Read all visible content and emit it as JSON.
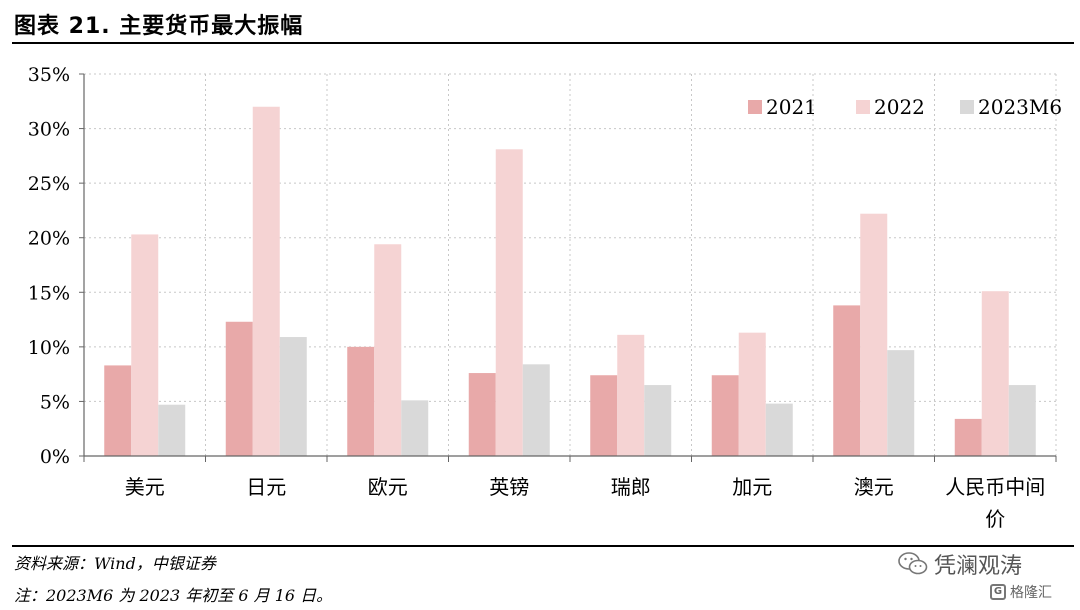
{
  "header": {
    "title": "图表 21. 主要货币最大振幅"
  },
  "chart_data": {
    "type": "bar",
    "categories": [
      "美元",
      "日元",
      "欧元",
      "英镑",
      "瑞郎",
      "加元",
      "澳元",
      "人民币中间价"
    ],
    "category_lines": [
      [
        "美元"
      ],
      [
        "日元"
      ],
      [
        "欧元"
      ],
      [
        "英镑"
      ],
      [
        "瑞郎"
      ],
      [
        "加元"
      ],
      [
        "澳元"
      ],
      [
        "人民币中间",
        "价"
      ]
    ],
    "series": [
      {
        "name": "2021",
        "color": "#e8a9a9",
        "values": [
          8.3,
          12.3,
          10.0,
          7.6,
          7.4,
          7.4,
          13.8,
          3.4
        ]
      },
      {
        "name": "2022",
        "color": "#f5d3d3",
        "values": [
          20.3,
          32.0,
          19.4,
          28.1,
          11.1,
          11.3,
          22.2,
          15.1
        ]
      },
      {
        "name": "2023M6",
        "color": "#d9d9d9",
        "values": [
          4.7,
          10.9,
          5.1,
          8.4,
          6.5,
          4.8,
          9.7,
          6.5
        ]
      }
    ],
    "yticks": [
      "0%",
      "5%",
      "10%",
      "15%",
      "20%",
      "25%",
      "30%",
      "35%"
    ],
    "ylim": [
      0,
      35
    ],
    "grid": true,
    "legend_position": "top-right"
  },
  "footer": {
    "source": "资料来源：Wind，中银证券",
    "note": "注：2023M6 为 2023 年初至 6 月 16 日。"
  },
  "watermark": {
    "text": "凭澜观涛",
    "brand": "格隆汇",
    "brand_mark": "G"
  }
}
